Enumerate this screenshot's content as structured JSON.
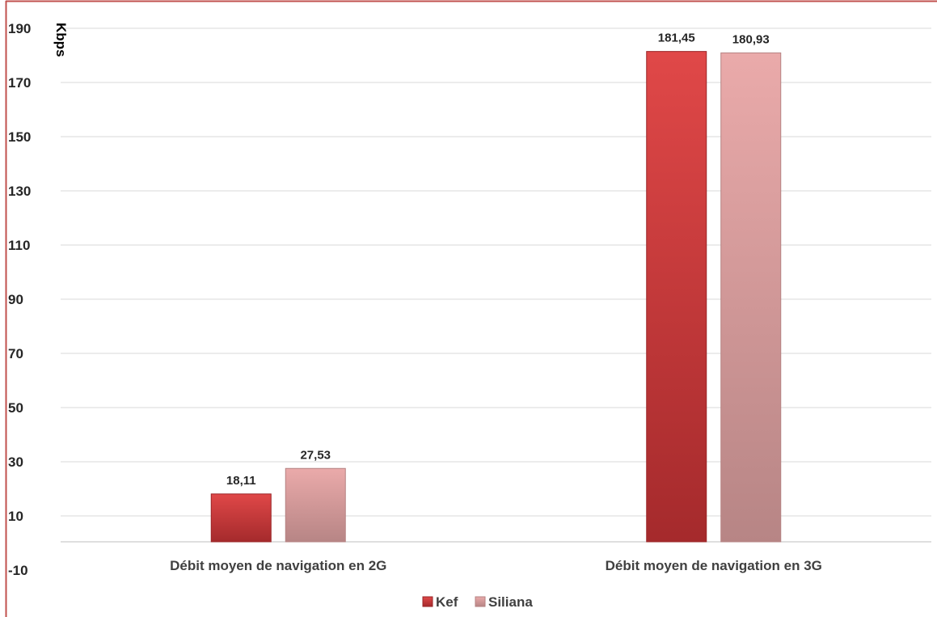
{
  "chart_data": {
    "type": "bar",
    "ylabel": "Kbps",
    "ylim": [
      -10,
      190
    ],
    "yticks": [
      190,
      170,
      150,
      130,
      110,
      90,
      70,
      50,
      30,
      10,
      -10
    ],
    "categories": [
      "Débit moyen de navigation en 2G",
      "Débit moyen de navigation en 3G"
    ],
    "series": [
      {
        "name": "Kef",
        "values": [
          18.11,
          181.45
        ],
        "labels": [
          "18,11",
          "181,45"
        ],
        "color": "#c0393b"
      },
      {
        "name": "Siliana",
        "values": [
          27.53,
          180.93
        ],
        "labels": [
          "27,53",
          "180,93"
        ],
        "color": "#dba0a0"
      }
    ],
    "grid": true,
    "legend_position": "bottom"
  },
  "colors": {
    "frame": "#c0504d",
    "grid": "#d9d9d9"
  }
}
